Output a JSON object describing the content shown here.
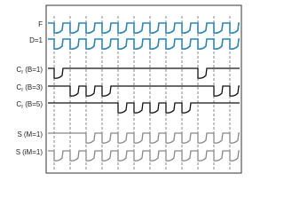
{
  "rows": [
    {
      "label": "F"
    },
    {
      "label": "D=1"
    },
    {
      "label": "C",
      "subscript": "r",
      "suffix": "(B=1)"
    },
    {
      "label": "C",
      "subscript": "r",
      "suffix": "(B=3)"
    },
    {
      "label": "C",
      "subscript": "r",
      "suffix": "(B=5)"
    },
    {
      "label": "S",
      "suffix": "(M=1)"
    },
    {
      "label": "S",
      "suffix": "(iM=1)"
    }
  ]
}
